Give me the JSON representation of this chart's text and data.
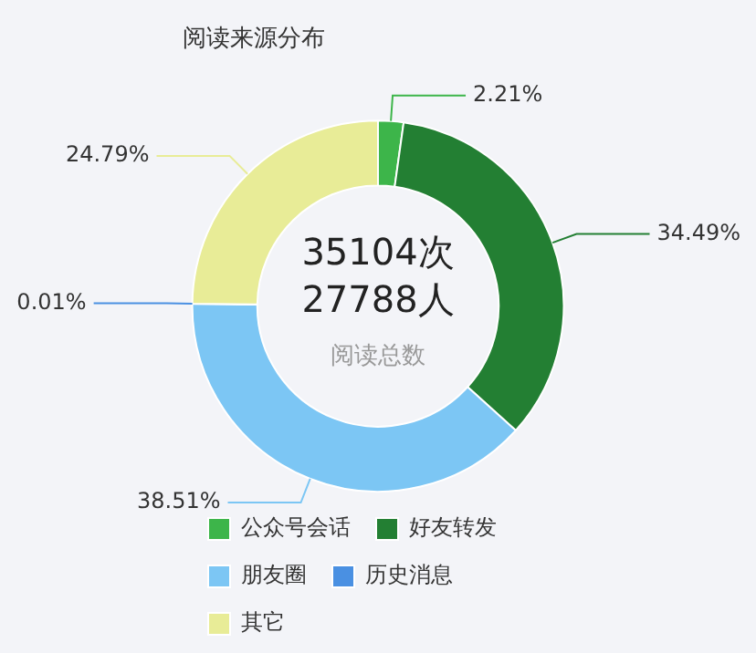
{
  "chart_data": {
    "type": "donut",
    "title": "阅读来源分布",
    "categories": [
      "公众号会话",
      "好友转发",
      "朋友圈",
      "历史消息",
      "其它"
    ],
    "values": [
      2.21,
      34.49,
      38.51,
      0.01,
      24.79
    ],
    "colors": [
      "#3db54a",
      "#237f33",
      "#7cc6f4",
      "#4a90e2",
      "#e8ec97"
    ],
    "value_labels": [
      "2.21%",
      "34.49%",
      "38.51%",
      "0.01%",
      "24.79%"
    ],
    "annotations": [
      "35104次",
      "27788人",
      "阅读总数"
    ],
    "legend": "bottom"
  }
}
